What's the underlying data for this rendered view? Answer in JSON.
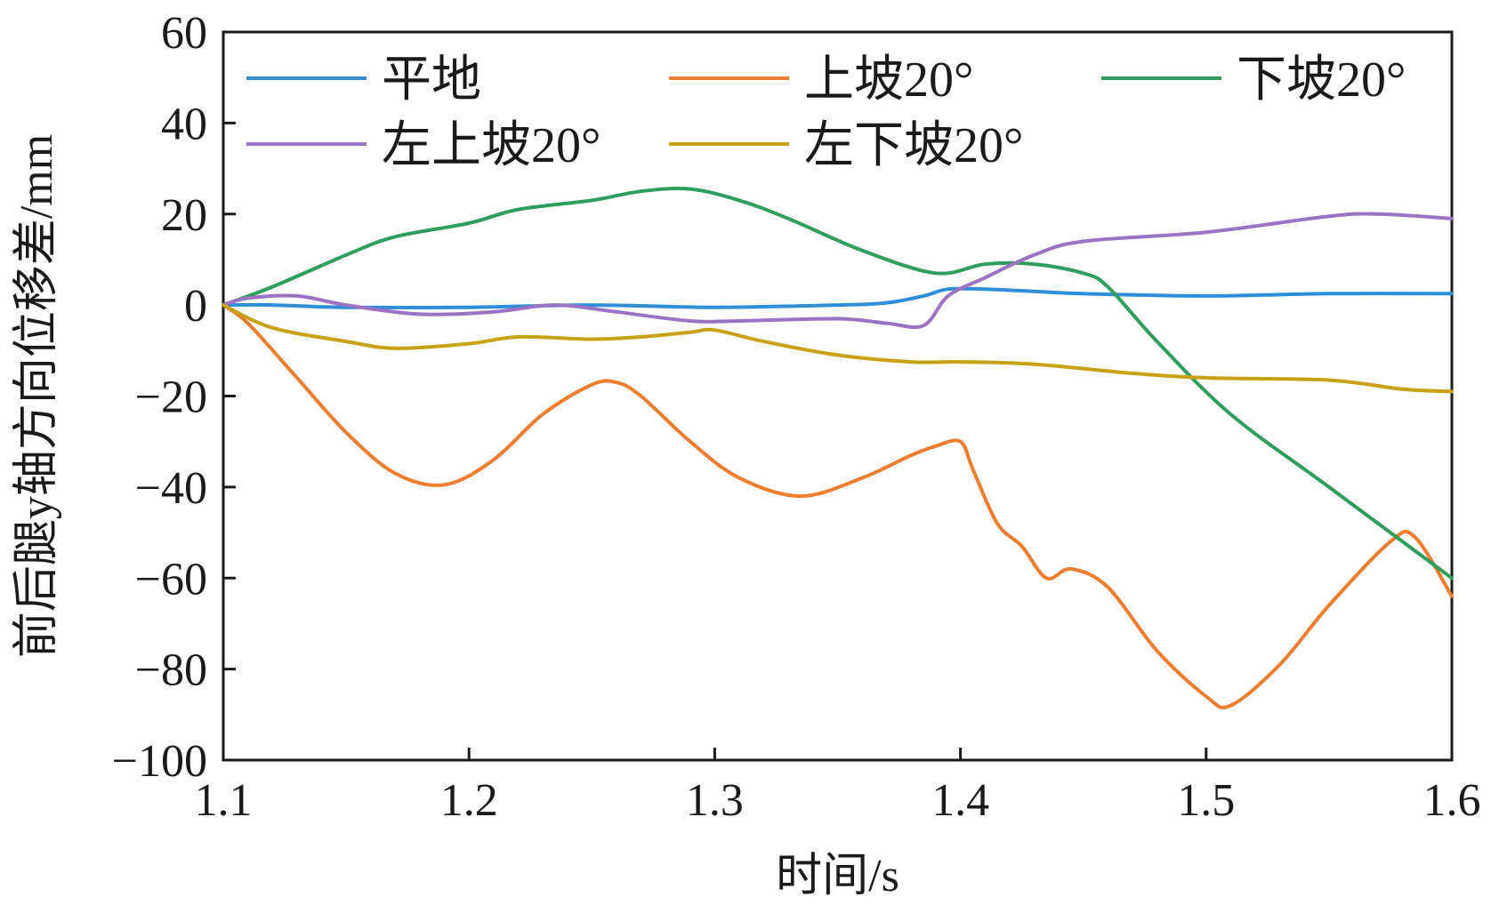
{
  "chart_data": {
    "type": "line",
    "title": "",
    "xlabel": "时间/s",
    "ylabel": "前后腿y轴方向位移差/mm",
    "xlim": [
      1.1,
      1.6
    ],
    "ylim": [
      -100,
      60
    ],
    "xticks": [
      "1.1",
      "1.2",
      "1.3",
      "1.4",
      "1.5",
      "1.6"
    ],
    "yticks": [
      "60",
      "40",
      "20",
      "0",
      "−20",
      "−40",
      "−60",
      "−80",
      "−100"
    ],
    "grid": false,
    "legend_position": "top",
    "series": [
      {
        "name": "平地",
        "color": "#2e8fd8",
        "x": [
          1.1,
          1.12,
          1.15,
          1.2,
          1.25,
          1.3,
          1.35,
          1.37,
          1.385,
          1.395,
          1.41,
          1.43,
          1.45,
          1.5,
          1.55,
          1.6
        ],
        "y": [
          0,
          0,
          -0.5,
          -0.5,
          0,
          -0.5,
          0,
          0.5,
          2,
          3.5,
          3.5,
          3,
          2.5,
          2,
          2.5,
          2.5
        ]
      },
      {
        "name": "上坡20°",
        "color": "#ee7d2e",
        "x": [
          1.1,
          1.11,
          1.13,
          1.15,
          1.17,
          1.19,
          1.21,
          1.23,
          1.25,
          1.26,
          1.27,
          1.29,
          1.31,
          1.335,
          1.36,
          1.38,
          1.39,
          1.4,
          1.405,
          1.415,
          1.425,
          1.435,
          1.445,
          1.46,
          1.48,
          1.5,
          1.51,
          1.53,
          1.55,
          1.575,
          1.585,
          1.6
        ],
        "y": [
          0,
          -4,
          -16,
          -28,
          -37,
          -39.5,
          -34,
          -24,
          -17.5,
          -17,
          -20,
          -30,
          -38,
          -42,
          -38,
          -33,
          -31,
          -30,
          -36,
          -48,
          -53,
          -60,
          -58,
          -62,
          -76,
          -86,
          -88,
          -79,
          -66,
          -52,
          -51,
          -64
        ]
      },
      {
        "name": "下坡20°",
        "color": "#2e9e5b",
        "x": [
          1.1,
          1.12,
          1.15,
          1.17,
          1.2,
          1.22,
          1.25,
          1.27,
          1.29,
          1.31,
          1.33,
          1.36,
          1.39,
          1.41,
          1.43,
          1.45,
          1.46,
          1.48,
          1.51,
          1.55,
          1.6
        ],
        "y": [
          0,
          4,
          11,
          15,
          18,
          21,
          23,
          25,
          25.5,
          23,
          19,
          12,
          7,
          9,
          9,
          7,
          4,
          -8,
          -24,
          -40,
          -60
        ]
      },
      {
        "name": "左上坡20°",
        "color": "#9b72c4",
        "x": [
          1.1,
          1.11,
          1.13,
          1.15,
          1.18,
          1.21,
          1.235,
          1.26,
          1.29,
          1.31,
          1.35,
          1.37,
          1.385,
          1.395,
          1.41,
          1.43,
          1.45,
          1.5,
          1.55,
          1.57,
          1.6
        ],
        "y": [
          0,
          1.5,
          2,
          0,
          -2,
          -1.5,
          0,
          -1.5,
          -3.5,
          -3.5,
          -3,
          -4,
          -4.5,
          2,
          6,
          11,
          14,
          16,
          19.5,
          20,
          19
        ]
      },
      {
        "name": "左下坡20°",
        "color": "#c9a117",
        "x": [
          1.1,
          1.12,
          1.15,
          1.17,
          1.2,
          1.22,
          1.25,
          1.27,
          1.29,
          1.3,
          1.32,
          1.35,
          1.38,
          1.4,
          1.43,
          1.47,
          1.5,
          1.55,
          1.58,
          1.6
        ],
        "y": [
          0,
          -5,
          -8,
          -9.5,
          -8.5,
          -7,
          -7.5,
          -7,
          -6,
          -5.5,
          -8,
          -11,
          -12.5,
          -12.5,
          -13,
          -15,
          -16,
          -16.5,
          -18.5,
          -19
        ]
      }
    ]
  }
}
